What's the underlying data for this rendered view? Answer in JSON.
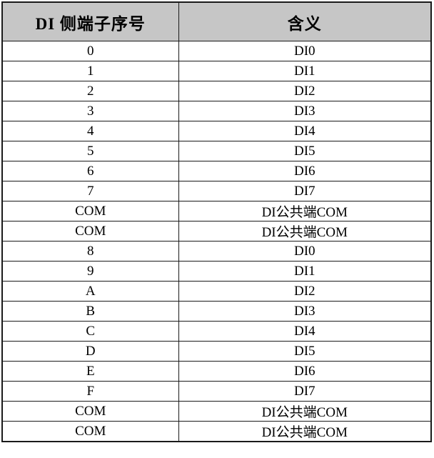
{
  "table": {
    "columns": [
      {
        "label": "DI 侧端子序号"
      },
      {
        "label": "含义"
      }
    ],
    "rows": [
      {
        "terminal": "0",
        "meaning": "DI0"
      },
      {
        "terminal": "1",
        "meaning": "DI1"
      },
      {
        "terminal": "2",
        "meaning": "DI2"
      },
      {
        "terminal": "3",
        "meaning": "DI3"
      },
      {
        "terminal": "4",
        "meaning": "DI4"
      },
      {
        "terminal": "5",
        "meaning": "DI5"
      },
      {
        "terminal": "6",
        "meaning": "DI6"
      },
      {
        "terminal": "7",
        "meaning": "DI7"
      },
      {
        "terminal": "COM",
        "meaning": "DI公共端COM"
      },
      {
        "terminal": "COM",
        "meaning": "DI公共端COM"
      },
      {
        "terminal": "8",
        "meaning": "DI0"
      },
      {
        "terminal": "9",
        "meaning": "DI1"
      },
      {
        "terminal": "A",
        "meaning": "DI2"
      },
      {
        "terminal": "B",
        "meaning": "DI3"
      },
      {
        "terminal": "C",
        "meaning": "DI4"
      },
      {
        "terminal": "D",
        "meaning": "DI5"
      },
      {
        "terminal": "E",
        "meaning": "DI6"
      },
      {
        "terminal": "F",
        "meaning": "DI7"
      },
      {
        "terminal": "COM",
        "meaning": "DI公共端COM"
      },
      {
        "terminal": "COM",
        "meaning": "DI公共端COM"
      }
    ]
  },
  "colors": {
    "header_bg": "#c6c6c6",
    "border": "#1a1a1a",
    "text": "#000000",
    "page_bg": "#ffffff"
  }
}
